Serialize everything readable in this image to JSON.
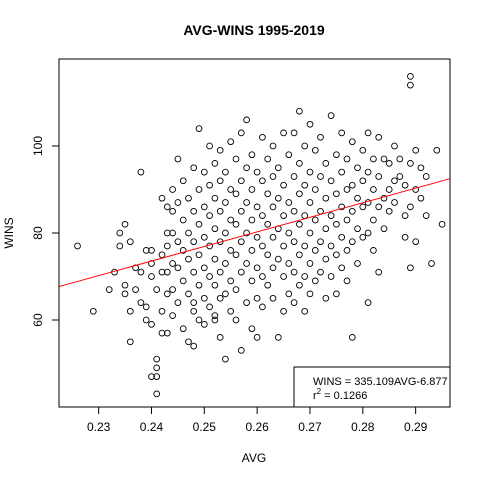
{
  "chart_data": {
    "type": "scatter",
    "title": "AVG-WINS 1995-2019",
    "xlabel": "AVG",
    "ylabel": "WINS",
    "xlim": [
      0.2225,
      0.2965
    ],
    "ylim": [
      40,
      120
    ],
    "xticks": [
      "0.23",
      "0.24",
      "0.25",
      "0.26",
      "0.27",
      "0.28",
      "0.29"
    ],
    "yticks": [
      "60",
      "80",
      "100"
    ],
    "grid": false,
    "legend_position": "bottom-right",
    "legend": {
      "line1": "WINS = 335.109AVG-6.877",
      "line2_prefix": "r",
      "line2_sup": "2",
      "line2_value": " = 0.1266"
    },
    "regression": {
      "slope": 335.109,
      "intercept": -6.877,
      "color": "#ff0000"
    },
    "point_color": "#000000",
    "points": [
      [
        0.226,
        77
      ],
      [
        0.229,
        62
      ],
      [
        0.232,
        67
      ],
      [
        0.233,
        71
      ],
      [
        0.234,
        80
      ],
      [
        0.234,
        77
      ],
      [
        0.235,
        82
      ],
      [
        0.235,
        68
      ],
      [
        0.235,
        66
      ],
      [
        0.236,
        78
      ],
      [
        0.236,
        62
      ],
      [
        0.236,
        55
      ],
      [
        0.237,
        72
      ],
      [
        0.237,
        67
      ],
      [
        0.238,
        94
      ],
      [
        0.238,
        71
      ],
      [
        0.238,
        64
      ],
      [
        0.239,
        76
      ],
      [
        0.239,
        63
      ],
      [
        0.239,
        60
      ],
      [
        0.24,
        76
      ],
      [
        0.24,
        73
      ],
      [
        0.24,
        70
      ],
      [
        0.24,
        59
      ],
      [
        0.24,
        47
      ],
      [
        0.241,
        67
      ],
      [
        0.241,
        51
      ],
      [
        0.241,
        49
      ],
      [
        0.241,
        47
      ],
      [
        0.241,
        43
      ],
      [
        0.242,
        88
      ],
      [
        0.242,
        75
      ],
      [
        0.242,
        71
      ],
      [
        0.242,
        62
      ],
      [
        0.242,
        57
      ],
      [
        0.243,
        86
      ],
      [
        0.243,
        80
      ],
      [
        0.243,
        77
      ],
      [
        0.243,
        71
      ],
      [
        0.243,
        66
      ],
      [
        0.243,
        57
      ],
      [
        0.244,
        90
      ],
      [
        0.244,
        85
      ],
      [
        0.244,
        80
      ],
      [
        0.244,
        73
      ],
      [
        0.244,
        67
      ],
      [
        0.244,
        61
      ],
      [
        0.245,
        97
      ],
      [
        0.245,
        87
      ],
      [
        0.245,
        78
      ],
      [
        0.245,
        72
      ],
      [
        0.245,
        64
      ],
      [
        0.246,
        92
      ],
      [
        0.246,
        83
      ],
      [
        0.246,
        76
      ],
      [
        0.246,
        69
      ],
      [
        0.246,
        58
      ],
      [
        0.247,
        88
      ],
      [
        0.247,
        80
      ],
      [
        0.247,
        74
      ],
      [
        0.247,
        66
      ],
      [
        0.247,
        55
      ],
      [
        0.248,
        95
      ],
      [
        0.248,
        85
      ],
      [
        0.248,
        78
      ],
      [
        0.248,
        71
      ],
      [
        0.248,
        62
      ],
      [
        0.248,
        54
      ],
      [
        0.249,
        104
      ],
      [
        0.249,
        90
      ],
      [
        0.249,
        82
      ],
      [
        0.249,
        75
      ],
      [
        0.249,
        68
      ],
      [
        0.249,
        60
      ],
      [
        0.25,
        94
      ],
      [
        0.25,
        86
      ],
      [
        0.25,
        79
      ],
      [
        0.25,
        72
      ],
      [
        0.25,
        65
      ],
      [
        0.25,
        59
      ],
      [
        0.251,
        100
      ],
      [
        0.251,
        91
      ],
      [
        0.251,
        84
      ],
      [
        0.251,
        77
      ],
      [
        0.251,
        70
      ],
      [
        0.251,
        63
      ],
      [
        0.252,
        96
      ],
      [
        0.252,
        88
      ],
      [
        0.252,
        81
      ],
      [
        0.252,
        74
      ],
      [
        0.252,
        68
      ],
      [
        0.252,
        61
      ],
      [
        0.253,
        99
      ],
      [
        0.253,
        92
      ],
      [
        0.253,
        85
      ],
      [
        0.253,
        78
      ],
      [
        0.253,
        71
      ],
      [
        0.253,
        65
      ],
      [
        0.253,
        56
      ],
      [
        0.254,
        94
      ],
      [
        0.254,
        87
      ],
      [
        0.254,
        80
      ],
      [
        0.254,
        73
      ],
      [
        0.254,
        66
      ],
      [
        0.254,
        51
      ],
      [
        0.255,
        101
      ],
      [
        0.255,
        90
      ],
      [
        0.255,
        83
      ],
      [
        0.255,
        76
      ],
      [
        0.255,
        69
      ],
      [
        0.255,
        62
      ],
      [
        0.256,
        97
      ],
      [
        0.256,
        89
      ],
      [
        0.256,
        82
      ],
      [
        0.256,
        75
      ],
      [
        0.256,
        67
      ],
      [
        0.256,
        60
      ],
      [
        0.257,
        103
      ],
      [
        0.257,
        92
      ],
      [
        0.257,
        85
      ],
      [
        0.257,
        78
      ],
      [
        0.257,
        71
      ],
      [
        0.257,
        53
      ],
      [
        0.258,
        106
      ],
      [
        0.258,
        95
      ],
      [
        0.258,
        87
      ],
      [
        0.258,
        80
      ],
      [
        0.258,
        73
      ],
      [
        0.258,
        64
      ],
      [
        0.259,
        98
      ],
      [
        0.259,
        90
      ],
      [
        0.259,
        83
      ],
      [
        0.259,
        76
      ],
      [
        0.259,
        69
      ],
      [
        0.259,
        58
      ],
      [
        0.26,
        94
      ],
      [
        0.26,
        86
      ],
      [
        0.26,
        79
      ],
      [
        0.26,
        72
      ],
      [
        0.26,
        65
      ],
      [
        0.26,
        56
      ],
      [
        0.261,
        102
      ],
      [
        0.261,
        92
      ],
      [
        0.261,
        84
      ],
      [
        0.261,
        77
      ],
      [
        0.261,
        70
      ],
      [
        0.261,
        63
      ],
      [
        0.262,
        97
      ],
      [
        0.262,
        89
      ],
      [
        0.262,
        82
      ],
      [
        0.262,
        75
      ],
      [
        0.262,
        68
      ],
      [
        0.263,
        100
      ],
      [
        0.263,
        93
      ],
      [
        0.263,
        86
      ],
      [
        0.263,
        79
      ],
      [
        0.263,
        72
      ],
      [
        0.263,
        65
      ],
      [
        0.264,
        95
      ],
      [
        0.264,
        88
      ],
      [
        0.264,
        81
      ],
      [
        0.264,
        74
      ],
      [
        0.264,
        56
      ],
      [
        0.265,
        103
      ],
      [
        0.265,
        91
      ],
      [
        0.265,
        84
      ],
      [
        0.265,
        77
      ],
      [
        0.265,
        70
      ],
      [
        0.265,
        62
      ],
      [
        0.266,
        98
      ],
      [
        0.266,
        87
      ],
      [
        0.266,
        80
      ],
      [
        0.266,
        73
      ],
      [
        0.266,
        66
      ],
      [
        0.267,
        103
      ],
      [
        0.267,
        93
      ],
      [
        0.267,
        85
      ],
      [
        0.267,
        78
      ],
      [
        0.267,
        71
      ],
      [
        0.267,
        64
      ],
      [
        0.268,
        108
      ],
      [
        0.268,
        96
      ],
      [
        0.268,
        89
      ],
      [
        0.268,
        82
      ],
      [
        0.268,
        75
      ],
      [
        0.268,
        68
      ],
      [
        0.269,
        100
      ],
      [
        0.269,
        91
      ],
      [
        0.269,
        84
      ],
      [
        0.269,
        77
      ],
      [
        0.269,
        70
      ],
      [
        0.269,
        62
      ],
      [
        0.27,
        105
      ],
      [
        0.27,
        94
      ],
      [
        0.27,
        87
      ],
      [
        0.27,
        80
      ],
      [
        0.27,
        73
      ],
      [
        0.27,
        66
      ],
      [
        0.271,
        99
      ],
      [
        0.271,
        90
      ],
      [
        0.271,
        83
      ],
      [
        0.271,
        76
      ],
      [
        0.271,
        69
      ],
      [
        0.272,
        102
      ],
      [
        0.272,
        93
      ],
      [
        0.272,
        85
      ],
      [
        0.272,
        78
      ],
      [
        0.272,
        71
      ],
      [
        0.273,
        96
      ],
      [
        0.273,
        88
      ],
      [
        0.273,
        81
      ],
      [
        0.273,
        74
      ],
      [
        0.273,
        65
      ],
      [
        0.274,
        107
      ],
      [
        0.274,
        92
      ],
      [
        0.274,
        84
      ],
      [
        0.274,
        77
      ],
      [
        0.274,
        70
      ],
      [
        0.275,
        98
      ],
      [
        0.275,
        89
      ],
      [
        0.275,
        82
      ],
      [
        0.275,
        75
      ],
      [
        0.275,
        66
      ],
      [
        0.276,
        103
      ],
      [
        0.276,
        94
      ],
      [
        0.276,
        86
      ],
      [
        0.276,
        79
      ],
      [
        0.276,
        72
      ],
      [
        0.277,
        97
      ],
      [
        0.277,
        90
      ],
      [
        0.277,
        83
      ],
      [
        0.277,
        76
      ],
      [
        0.277,
        69
      ],
      [
        0.278,
        101
      ],
      [
        0.278,
        91
      ],
      [
        0.278,
        85
      ],
      [
        0.278,
        78
      ],
      [
        0.278,
        56
      ],
      [
        0.279,
        95
      ],
      [
        0.279,
        88
      ],
      [
        0.279,
        81
      ],
      [
        0.279,
        73
      ],
      [
        0.28,
        99
      ],
      [
        0.28,
        92
      ],
      [
        0.28,
        86
      ],
      [
        0.28,
        79
      ],
      [
        0.281,
        103
      ],
      [
        0.281,
        94
      ],
      [
        0.281,
        87
      ],
      [
        0.281,
        80
      ],
      [
        0.281,
        64
      ],
      [
        0.282,
        97
      ],
      [
        0.282,
        90
      ],
      [
        0.282,
        83
      ],
      [
        0.282,
        76
      ],
      [
        0.283,
        102
      ],
      [
        0.283,
        93
      ],
      [
        0.283,
        86
      ],
      [
        0.283,
        71
      ],
      [
        0.284,
        97
      ],
      [
        0.284,
        88
      ],
      [
        0.284,
        81
      ],
      [
        0.285,
        96
      ],
      [
        0.285,
        90
      ],
      [
        0.285,
        85
      ],
      [
        0.286,
        100
      ],
      [
        0.286,
        92
      ],
      [
        0.286,
        87
      ],
      [
        0.287,
        97
      ],
      [
        0.287,
        93
      ],
      [
        0.288,
        91
      ],
      [
        0.288,
        84
      ],
      [
        0.288,
        79
      ],
      [
        0.289,
        116
      ],
      [
        0.289,
        114
      ],
      [
        0.289,
        96
      ],
      [
        0.289,
        86
      ],
      [
        0.289,
        72
      ],
      [
        0.29,
        99
      ],
      [
        0.29,
        90
      ],
      [
        0.29,
        78
      ],
      [
        0.291,
        95
      ],
      [
        0.291,
        88
      ],
      [
        0.292,
        93
      ],
      [
        0.292,
        84
      ],
      [
        0.293,
        73
      ],
      [
        0.294,
        99
      ],
      [
        0.295,
        82
      ],
      [
        0.252,
        60
      ],
      [
        0.248,
        64
      ]
    ]
  }
}
